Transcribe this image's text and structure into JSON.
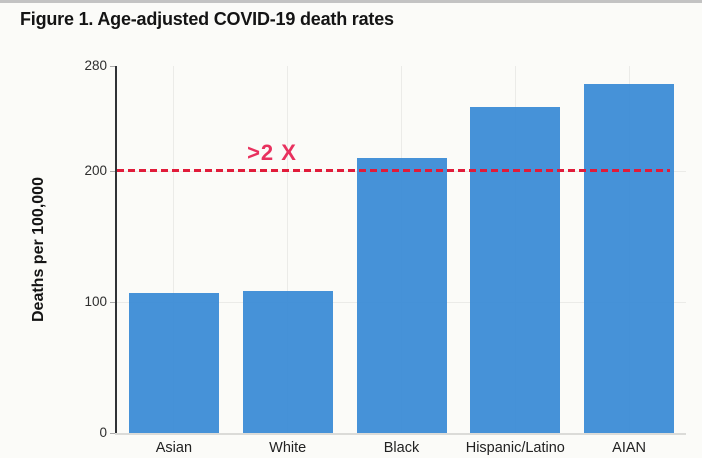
{
  "page": {
    "title": "Figure 1. Age-adjusted COVID-19 death rates"
  },
  "chart_data": {
    "type": "bar",
    "title": "Figure 1. Age-adjusted COVID-19 death rates",
    "categories": [
      "Asian",
      "White",
      "Black",
      "Hispanic/Latino",
      "AIAN"
    ],
    "values": [
      107,
      108,
      210,
      249,
      266
    ],
    "xlabel": "",
    "ylabel": "Deaths per 100,000",
    "ylim": [
      0,
      280
    ],
    "yticks": [
      0,
      100,
      200,
      280
    ],
    "grid_yticks": [
      100,
      200
    ],
    "grid": "on",
    "legend": "none",
    "bar_color": "#4a94d9",
    "background_color": "#fbfbf8",
    "reference_line": {
      "value": 200,
      "style": "dashed",
      "color": "#e11b3a",
      "label": ">2 X",
      "label_color": "#e8315e"
    }
  }
}
